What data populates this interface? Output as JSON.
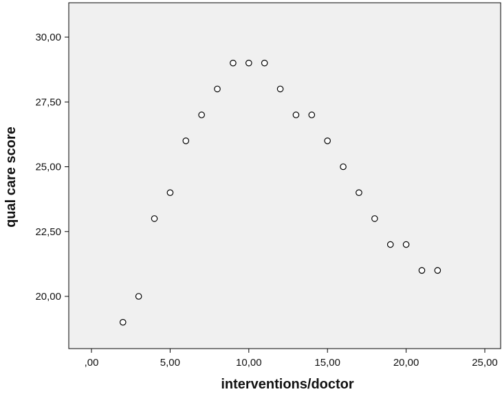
{
  "chart_data": {
    "type": "scatter",
    "title": "",
    "xlabel": "interventions/doctor",
    "ylabel": "qual care score",
    "xlim": [
      0,
      25
    ],
    "ylim": [
      18.1,
      31.3
    ],
    "x_ticks": [
      0,
      5,
      10,
      15,
      20,
      25
    ],
    "x_tick_labels": [
      ",00",
      "5,00",
      "10,00",
      "15,00",
      "20,00",
      "25,00"
    ],
    "y_ticks": [
      20,
      22.5,
      25,
      27.5,
      30
    ],
    "y_tick_labels": [
      "20,00",
      "22,50",
      "25,00",
      "27,50",
      "30,00"
    ],
    "grid": false,
    "colors": {
      "plot_background": "#f0f0f0",
      "marker_edge": "#000000",
      "marker_fill": "#ffffff"
    },
    "points": [
      {
        "x": 2,
        "y": 19
      },
      {
        "x": 3,
        "y": 20
      },
      {
        "x": 4,
        "y": 23
      },
      {
        "x": 5,
        "y": 24
      },
      {
        "x": 6,
        "y": 26
      },
      {
        "x": 7,
        "y": 27
      },
      {
        "x": 8,
        "y": 28
      },
      {
        "x": 9,
        "y": 29
      },
      {
        "x": 10,
        "y": 29
      },
      {
        "x": 11,
        "y": 29
      },
      {
        "x": 12,
        "y": 28
      },
      {
        "x": 13,
        "y": 27
      },
      {
        "x": 14,
        "y": 27
      },
      {
        "x": 15,
        "y": 26
      },
      {
        "x": 16,
        "y": 25
      },
      {
        "x": 17,
        "y": 24
      },
      {
        "x": 18,
        "y": 23
      },
      {
        "x": 19,
        "y": 22
      },
      {
        "x": 20,
        "y": 22
      },
      {
        "x": 21,
        "y": 21
      },
      {
        "x": 22,
        "y": 21
      }
    ]
  }
}
